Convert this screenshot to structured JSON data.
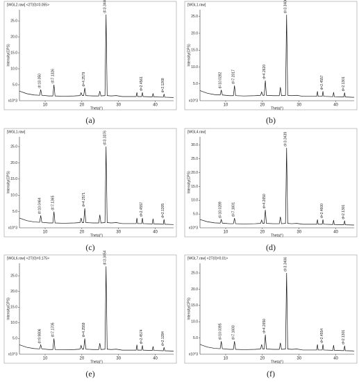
{
  "chart_data": [
    {
      "type": "line",
      "title": "[WGL2.raw] <2T(0)=0.055>",
      "caption": "(a)",
      "ylabel": "Intensity(CPS)",
      "xlabel": "Theta(°)",
      "y_unit_label": "x10^3",
      "color": "#111111",
      "x": [
        3,
        5,
        7,
        8.5,
        8.8,
        9.1,
        11,
        12.1,
        12.4,
        12.7,
        15,
        18,
        19.5,
        19.8,
        20.1,
        20.5,
        20.8,
        21.1,
        23,
        24.6,
        24.9,
        25.2,
        26.3,
        26.6,
        26.9,
        28,
        29.4,
        31,
        34.8,
        35,
        35.2,
        36.3,
        36.5,
        36.7,
        39.2,
        39.4,
        39.6,
        42.2,
        42.4,
        42.6,
        45
      ],
      "values": [
        3.0,
        2.2,
        1.8,
        1.7,
        3.5,
        1.7,
        1.5,
        1.5,
        5.0,
        1.5,
        1.4,
        1.5,
        1.6,
        2.5,
        1.6,
        1.6,
        4.0,
        1.6,
        1.5,
        1.5,
        3.0,
        1.5,
        1.6,
        27,
        1.6,
        1.5,
        1.6,
        1.3,
        1.3,
        2.6,
        1.3,
        1.3,
        2.6,
        1.3,
        1.2,
        2.3,
        1.2,
        1.1,
        2.1,
        1.1,
        1.0
      ],
      "xlim": [
        3,
        45
      ],
      "xticks": [
        10,
        20,
        30,
        40
      ],
      "ylim": [
        0,
        28.5
      ],
      "yticks": [
        {
          "value": 5,
          "label": "5.0"
        },
        {
          "value": 10,
          "label": "10.0"
        },
        {
          "value": 15,
          "label": "15.0"
        },
        {
          "value": 20,
          "label": "20.0"
        },
        {
          "value": 25,
          "label": "25.0"
        }
      ],
      "annotations": [
        {
          "x": 8.8,
          "text": "d=10.050"
        },
        {
          "x": 12.4,
          "text": "d=7.1326"
        },
        {
          "x": 20.8,
          "text": "d=4.2579"
        },
        {
          "x": 26.6,
          "text": "d=3.3440"
        },
        {
          "x": 36.5,
          "text": "d=2.4561"
        },
        {
          "x": 42.4,
          "text": "d=2.1268"
        }
      ]
    },
    {
      "type": "line",
      "title": "[WGL1.raw]",
      "caption": "(b)",
      "ylabel": "Intensity(CPS)",
      "xlabel": "Theta(°)",
      "y_unit_label": "x10^3",
      "color": "#111111",
      "x": [
        3,
        5,
        7,
        8.5,
        8.8,
        9.1,
        11,
        12.1,
        12.4,
        12.7,
        15,
        18,
        19.5,
        19.8,
        20.1,
        20.5,
        20.8,
        21.1,
        23,
        24.6,
        24.9,
        25.2,
        26.3,
        26.6,
        26.9,
        28,
        29.4,
        31,
        34.8,
        35,
        35.2,
        36.3,
        36.5,
        36.7,
        39.2,
        39.4,
        39.6,
        42.2,
        42.4,
        42.6,
        45
      ],
      "values": [
        3.0,
        2.2,
        1.8,
        1.7,
        3.2,
        1.7,
        1.5,
        1.5,
        4.5,
        1.5,
        1.4,
        1.5,
        1.6,
        2.6,
        1.6,
        1.6,
        6.0,
        1.6,
        1.5,
        1.5,
        4.0,
        1.5,
        1.6,
        25.5,
        1.6,
        1.5,
        1.6,
        1.3,
        1.3,
        2.8,
        1.3,
        1.3,
        2.8,
        1.3,
        1.2,
        2.5,
        1.2,
        1.1,
        2.4,
        1.1,
        1.0
      ],
      "xlim": [
        3,
        45
      ],
      "xticks": [
        10,
        20,
        30,
        40
      ],
      "ylim": [
        0,
        27
      ],
      "yticks": [
        {
          "value": 5,
          "label": "5.0"
        },
        {
          "value": 10,
          "label": "10.0"
        },
        {
          "value": 15,
          "label": "15.0"
        },
        {
          "value": 20,
          "label": "20.0"
        },
        {
          "value": 25,
          "label": "25.0"
        }
      ],
      "annotations": [
        {
          "x": 8.8,
          "text": "d=10.0282"
        },
        {
          "x": 12.4,
          "text": "d=7.2017"
        },
        {
          "x": 20.8,
          "text": "d=4.2620"
        },
        {
          "x": 26.6,
          "text": "d=3.3406"
        },
        {
          "x": 36.5,
          "text": "d=2.4557"
        },
        {
          "x": 42.4,
          "text": "d=2.1301"
        }
      ]
    },
    {
      "type": "line",
      "title": "[WGL1.raw]",
      "caption": "(c)",
      "ylabel": "Intensity(CPS)",
      "xlabel": "Theta(°)",
      "y_unit_label": "x10^3",
      "color": "#111111",
      "x": [
        3,
        5,
        7,
        8.5,
        8.8,
        9.1,
        11,
        12.1,
        12.4,
        12.7,
        15,
        18,
        19.5,
        19.8,
        20.1,
        20.5,
        20.8,
        21.1,
        23,
        24.6,
        24.9,
        25.2,
        26.3,
        26.6,
        26.9,
        28,
        29.4,
        31,
        34.8,
        35,
        35.2,
        36.3,
        36.5,
        36.7,
        39.2,
        39.4,
        39.6,
        42.2,
        42.4,
        42.6,
        45
      ],
      "values": [
        3.0,
        2.2,
        1.8,
        1.7,
        3.8,
        1.7,
        1.5,
        1.5,
        5.0,
        1.5,
        1.4,
        1.5,
        1.6,
        3.0,
        1.6,
        1.6,
        6.0,
        1.6,
        1.5,
        1.5,
        4.0,
        1.5,
        1.6,
        25,
        1.6,
        1.5,
        1.6,
        1.3,
        1.3,
        3.0,
        1.3,
        1.3,
        3.0,
        1.3,
        1.2,
        2.8,
        1.2,
        1.1,
        2.6,
        1.1,
        1.0
      ],
      "xlim": [
        3,
        45
      ],
      "xticks": [
        10,
        20,
        30,
        40
      ],
      "ylim": [
        0,
        28
      ],
      "yticks": [
        {
          "value": 5,
          "label": "5.0"
        },
        {
          "value": 10,
          "label": "10.0"
        },
        {
          "value": 15,
          "label": "15.0"
        },
        {
          "value": 20,
          "label": "20.0"
        },
        {
          "value": 25,
          "label": "25.0"
        }
      ],
      "annotations": [
        {
          "x": 8.8,
          "text": "d=10.0464"
        },
        {
          "x": 12.4,
          "text": "d=7.1365"
        },
        {
          "x": 20.8,
          "text": "d=4.2571"
        },
        {
          "x": 26.6,
          "text": "d=3.3376"
        },
        {
          "x": 36.5,
          "text": "d=2.4557"
        },
        {
          "x": 42.4,
          "text": "d=2.1305"
        }
      ]
    },
    {
      "type": "line",
      "title": "[WGL4.raw]",
      "caption": "(d)",
      "ylabel": "Intensity(CPS)",
      "xlabel": "Theta(°)",
      "y_unit_label": "x10^3",
      "color": "#111111",
      "x": [
        3,
        5,
        7,
        8.5,
        8.8,
        9.1,
        11,
        12.1,
        12.4,
        12.7,
        15,
        18,
        19.5,
        19.8,
        20.1,
        20.5,
        20.8,
        21.1,
        23,
        24.6,
        24.9,
        25.2,
        26.3,
        26.6,
        26.9,
        28,
        29.4,
        31,
        34.8,
        35,
        35.2,
        36.3,
        36.5,
        36.7,
        39.2,
        39.4,
        39.6,
        42.2,
        42.4,
        42.6,
        45
      ],
      "values": [
        3.0,
        2.2,
        1.8,
        1.7,
        3.0,
        1.7,
        1.5,
        1.5,
        3.5,
        1.5,
        1.4,
        1.5,
        1.6,
        2.8,
        1.6,
        1.6,
        6.5,
        1.6,
        1.5,
        1.5,
        4.0,
        1.5,
        1.6,
        29,
        1.6,
        1.5,
        1.6,
        1.3,
        1.3,
        3.0,
        1.3,
        1.3,
        3.0,
        1.3,
        1.2,
        2.8,
        1.2,
        1.1,
        2.6,
        1.1,
        1.0
      ],
      "xlim": [
        3,
        45
      ],
      "xticks": [
        10,
        20,
        30,
        40
      ],
      "ylim": [
        0,
        33
      ],
      "yticks": [
        {
          "value": 5,
          "label": "5.0"
        },
        {
          "value": 10,
          "label": "10.0"
        },
        {
          "value": 15,
          "label": "15.0"
        },
        {
          "value": 20,
          "label": "20.0"
        },
        {
          "value": 25,
          "label": "25.0"
        },
        {
          "value": 30,
          "label": "30.0"
        }
      ],
      "annotations": [
        {
          "x": 8.8,
          "text": "d=10.0289"
        },
        {
          "x": 12.4,
          "text": "d=7.1601"
        },
        {
          "x": 20.8,
          "text": "d=4.2650"
        },
        {
          "x": 26.6,
          "text": "d=3.3439"
        },
        {
          "x": 36.5,
          "text": "d=2.4600"
        },
        {
          "x": 42.4,
          "text": "d=2.1301"
        }
      ]
    },
    {
      "type": "line",
      "title": "[WGL6.raw] <2T(0)=0.175>",
      "caption": "(e)",
      "ylabel": "Intensity(CPS)",
      "xlabel": "Theta(°)",
      "y_unit_label": "x10^3",
      "color": "#111111",
      "x": [
        3,
        5,
        7,
        8.5,
        8.8,
        9.1,
        11,
        12.1,
        12.4,
        12.7,
        15,
        18,
        19.5,
        19.8,
        20.1,
        20.5,
        20.8,
        21.1,
        23,
        24.6,
        24.9,
        25.2,
        26.3,
        26.6,
        26.9,
        28,
        29.4,
        31,
        34.8,
        35,
        35.2,
        36.3,
        36.5,
        36.7,
        39.2,
        39.4,
        39.6,
        42.2,
        42.4,
        42.6,
        45
      ],
      "values": [
        3.0,
        2.2,
        1.8,
        1.7,
        3.0,
        1.7,
        1.5,
        1.5,
        5.0,
        1.5,
        1.4,
        1.5,
        1.6,
        2.8,
        1.6,
        1.6,
        5.0,
        1.6,
        1.5,
        1.5,
        3.5,
        1.5,
        1.6,
        28,
        1.6,
        1.5,
        1.6,
        1.3,
        1.3,
        3.0,
        1.3,
        1.3,
        2.8,
        1.3,
        1.2,
        2.5,
        1.2,
        1.1,
        2.2,
        1.1,
        1.0
      ],
      "xlim": [
        3,
        45
      ],
      "xticks": [
        10,
        20,
        30,
        40
      ],
      "ylim": [
        0,
        29
      ],
      "yticks": [
        {
          "value": 5,
          "label": "5.0"
        },
        {
          "value": 10,
          "label": "10.0"
        },
        {
          "value": 15,
          "label": "15.0"
        },
        {
          "value": 20,
          "label": "20.0"
        },
        {
          "value": 25,
          "label": "25.0"
        }
      ],
      "annotations": [
        {
          "x": 8.8,
          "text": "d=9.9806"
        },
        {
          "x": 12.4,
          "text": "d=7.1705"
        },
        {
          "x": 20.8,
          "text": "d=4.2559"
        },
        {
          "x": 26.6,
          "text": "d=3.3454"
        },
        {
          "x": 36.5,
          "text": "d=2.4574"
        },
        {
          "x": 42.4,
          "text": "d=2.1284"
        }
      ]
    },
    {
      "type": "line",
      "title": "[WGL7.raw] <2T(0)=0.01>",
      "caption": "(f)",
      "ylabel": "Intensity(CPS)",
      "xlabel": "Theta(°)",
      "y_unit_label": "x10^3",
      "color": "#111111",
      "x": [
        3,
        5,
        7,
        8.5,
        8.8,
        9.1,
        11,
        12.1,
        12.4,
        12.7,
        15,
        18,
        19.5,
        19.8,
        20.1,
        20.5,
        20.8,
        21.1,
        23,
        24.6,
        24.9,
        25.2,
        26.3,
        26.6,
        26.9,
        28,
        29.4,
        31,
        34.8,
        35,
        35.2,
        36.3,
        36.5,
        36.7,
        39.2,
        39.4,
        39.6,
        42.2,
        42.4,
        42.6,
        45
      ],
      "values": [
        3.0,
        2.2,
        1.8,
        1.7,
        4.0,
        1.7,
        1.5,
        1.5,
        4.0,
        1.5,
        1.4,
        1.5,
        1.6,
        3.0,
        1.6,
        1.6,
        6.0,
        1.6,
        1.5,
        1.5,
        3.5,
        1.5,
        1.6,
        25,
        1.6,
        1.5,
        1.6,
        1.3,
        1.3,
        3.0,
        1.3,
        1.3,
        3.0,
        1.3,
        1.2,
        2.8,
        1.2,
        1.1,
        2.6,
        1.1,
        1.0
      ],
      "xlim": [
        3,
        45
      ],
      "xticks": [
        10,
        20,
        30,
        40
      ],
      "ylim": [
        0,
        28
      ],
      "yticks": [
        {
          "value": 5,
          "label": "5.0"
        },
        {
          "value": 10,
          "label": "10.0"
        },
        {
          "value": 15,
          "label": "15.0"
        },
        {
          "value": 20,
          "label": "20.0"
        },
        {
          "value": 25,
          "label": "25.0"
        }
      ],
      "annotations": [
        {
          "x": 8.8,
          "text": "d=10.0395"
        },
        {
          "x": 12.4,
          "text": "d=7.1600"
        },
        {
          "x": 20.8,
          "text": "d=4.2650"
        },
        {
          "x": 26.6,
          "text": "d=3.3406"
        },
        {
          "x": 36.5,
          "text": "d=2.4554"
        },
        {
          "x": 42.4,
          "text": "d=2.1301"
        }
      ]
    }
  ]
}
